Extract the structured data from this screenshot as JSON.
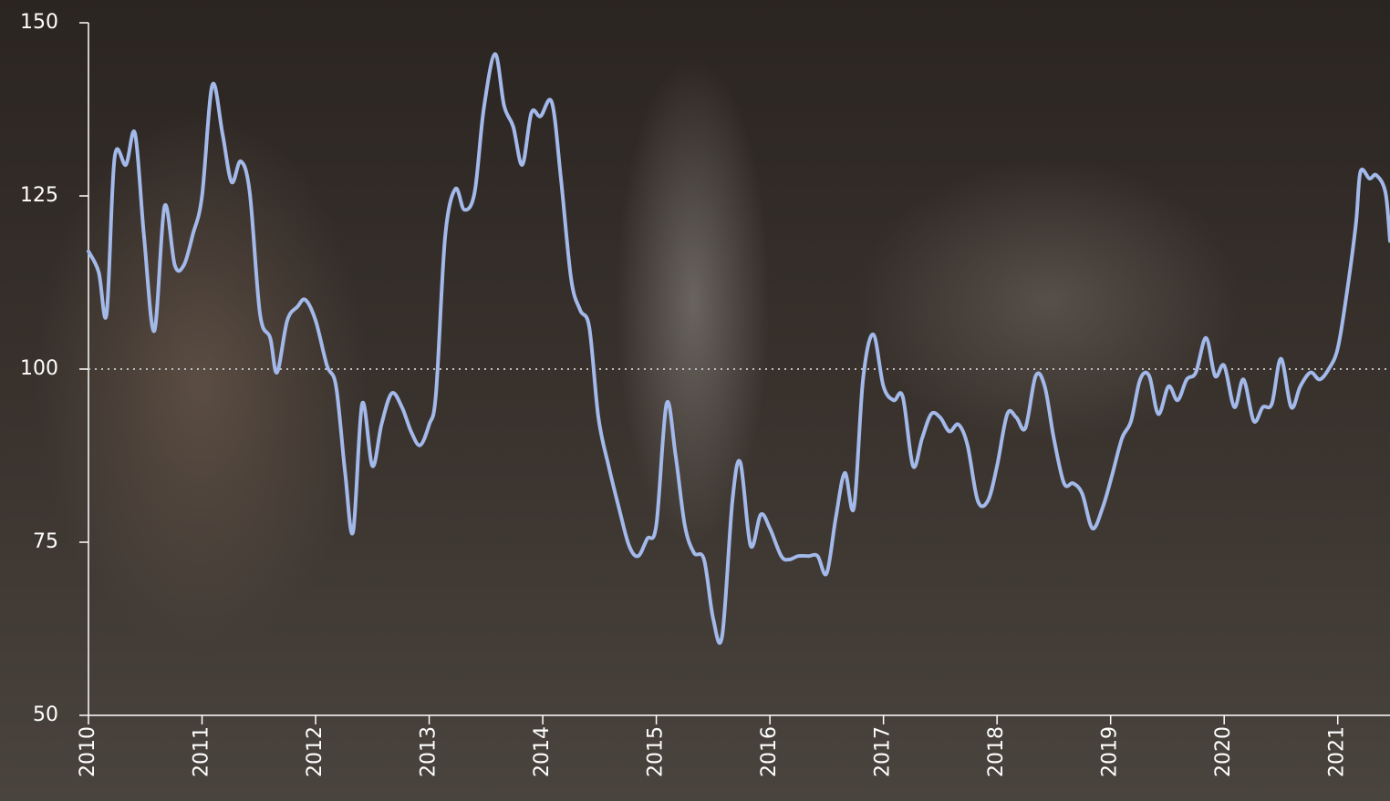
{
  "chart_data": {
    "type": "line",
    "x": [
      2010.0,
      2010.09,
      2010.16,
      2010.23,
      2010.33,
      2010.41,
      2010.49,
      2010.58,
      2010.67,
      2010.76,
      2010.84,
      2010.92,
      2011.0,
      2011.09,
      2011.18,
      2011.26,
      2011.34,
      2011.42,
      2011.51,
      2011.6,
      2011.66,
      2011.75,
      2011.84,
      2011.91,
      2012.0,
      2012.1,
      2012.18,
      2012.26,
      2012.33,
      2012.41,
      2012.5,
      2012.58,
      2012.67,
      2012.76,
      2012.84,
      2012.92,
      2013.0,
      2013.06,
      2013.14,
      2013.23,
      2013.31,
      2013.4,
      2013.48,
      2013.58,
      2013.66,
      2013.74,
      2013.82,
      2013.9,
      2013.98,
      2014.08,
      2014.16,
      2014.25,
      2014.33,
      2014.41,
      2014.49,
      2014.58,
      2014.67,
      2014.76,
      2014.84,
      2014.92,
      2015.0,
      2015.09,
      2015.17,
      2015.25,
      2015.33,
      2015.42,
      2015.5,
      2015.58,
      2015.67,
      2015.74,
      2015.83,
      2015.92,
      2016.0,
      2016.1,
      2016.17,
      2016.25,
      2016.34,
      2016.42,
      2016.5,
      2016.58,
      2016.66,
      2016.74,
      2016.82,
      2016.91,
      2017.0,
      2017.09,
      2017.17,
      2017.26,
      2017.34,
      2017.42,
      2017.5,
      2017.58,
      2017.66,
      2017.74,
      2017.83,
      2017.92,
      2018.0,
      2018.09,
      2018.17,
      2018.25,
      2018.34,
      2018.42,
      2018.5,
      2018.59,
      2018.67,
      2018.75,
      2018.84,
      2018.93,
      2019.01,
      2019.1,
      2019.18,
      2019.26,
      2019.34,
      2019.42,
      2019.51,
      2019.59,
      2019.67,
      2019.75,
      2019.84,
      2019.92,
      2020.0,
      2020.09,
      2020.17,
      2020.26,
      2020.34,
      2020.42,
      2020.5,
      2020.59,
      2020.67,
      2020.76,
      2020.84,
      2020.92,
      2021.0,
      2021.08,
      2021.16,
      2021.2,
      2021.28,
      2021.34,
      2021.42,
      2021.46
    ],
    "series": [
      {
        "color": "#a3b9ea",
        "values": [
          117,
          114,
          108,
          130.5,
          129.5,
          134,
          119,
          105.5,
          123.5,
          115,
          115,
          119.5,
          125,
          141,
          134,
          127,
          130,
          125.5,
          108,
          104.5,
          99.5,
          107,
          109,
          110,
          107,
          100.5,
          97.5,
          85,
          76.5,
          95,
          86,
          92,
          96.5,
          94.5,
          91,
          89,
          92,
          96.5,
          119,
          126,
          123,
          125.5,
          137.5,
          145.5,
          138,
          135,
          129.5,
          137,
          136.5,
          138.5,
          127.5,
          113,
          108.5,
          106,
          93,
          86,
          80,
          74.5,
          73,
          75.5,
          77.5,
          95,
          87.5,
          77.5,
          73.5,
          72.5,
          64,
          61.5,
          81,
          86.5,
          74.5,
          79,
          77,
          73,
          72.5,
          73,
          73,
          73,
          70.5,
          78.5,
          85,
          80,
          98.5,
          105,
          97.5,
          95.5,
          96,
          86,
          90,
          93.5,
          93,
          91,
          92,
          89,
          81,
          81,
          86,
          93.5,
          93,
          91.5,
          99,
          97.5,
          90,
          83.5,
          83.5,
          82,
          77,
          80,
          84.5,
          90,
          92.5,
          98.5,
          99,
          93.5,
          97.5,
          95.5,
          98.5,
          99.5,
          104.5,
          99,
          100.5,
          94.5,
          98.5,
          92.5,
          94.5,
          95,
          101.5,
          94.5,
          97.5,
          99.5,
          98.5,
          100,
          103,
          111,
          121,
          128.5,
          127.5,
          128,
          125.5,
          118.5
        ]
      }
    ],
    "xlim": [
      2010,
      2021.46
    ],
    "xticks": [
      2010,
      2011,
      2012,
      2013,
      2014,
      2015,
      2016,
      2017,
      2018,
      2019,
      2020,
      2021
    ],
    "ylim": [
      50,
      150
    ],
    "yticks": [
      50,
      75,
      100,
      125,
      150
    ],
    "reference_line": 100
  }
}
